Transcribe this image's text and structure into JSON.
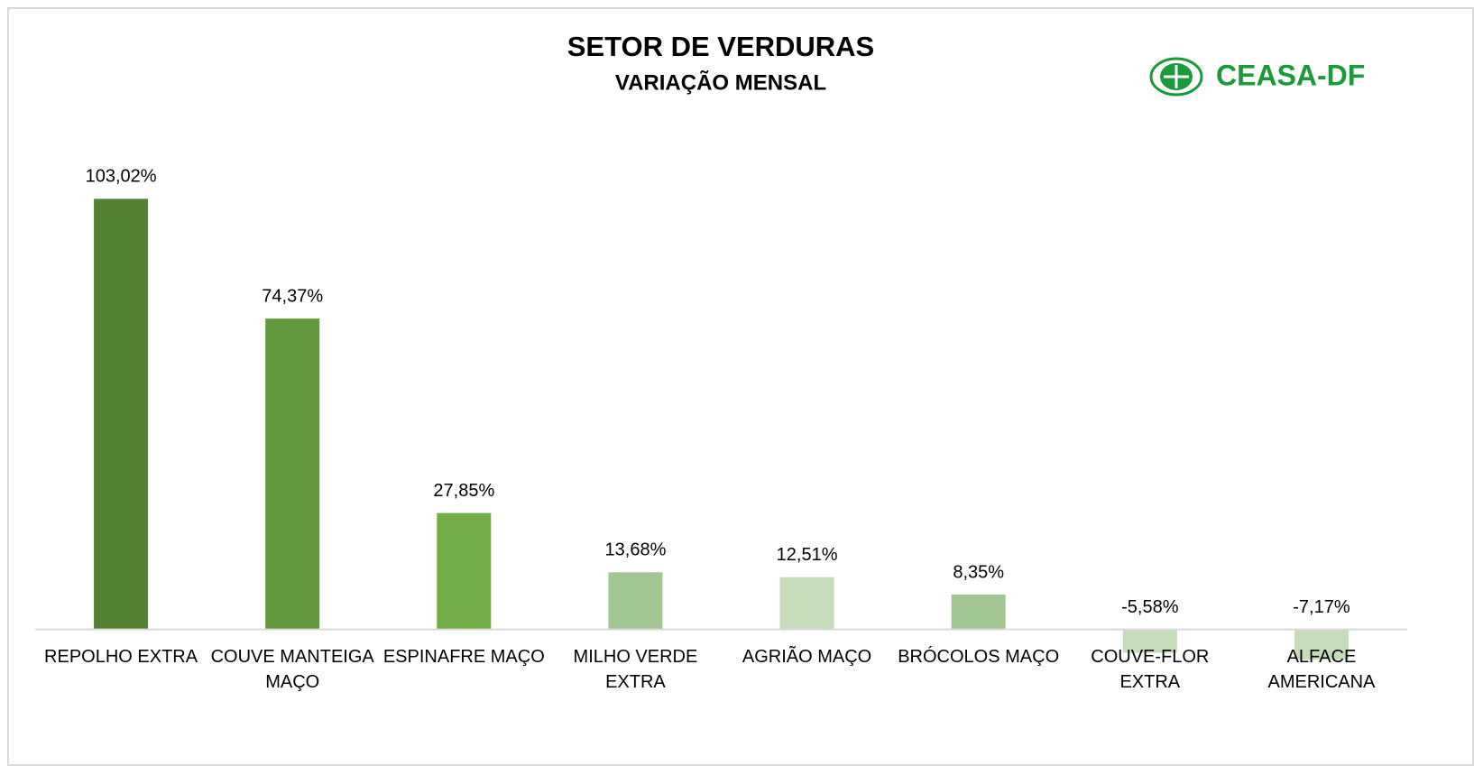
{
  "chart_data": {
    "type": "bar",
    "title": "SETOR DE VERDURAS",
    "subtitle": "VARIAÇÃO MENSAL",
    "logo_text": "CEASA-DF",
    "categories": [
      "REPOLHO EXTRA",
      "COUVE MANTEIGA MAÇO",
      "ESPINAFRE MAÇO",
      "MILHO VERDE EXTRA",
      "AGRIÃO MAÇO",
      "BRÓCOLOS MAÇO",
      "COUVE-FLOR EXTRA",
      "ALFACE AMERICANA"
    ],
    "values": [
      103.02,
      74.37,
      27.85,
      13.68,
      12.51,
      8.35,
      -5.58,
      -7.17
    ],
    "value_labels": [
      "103,02%",
      "74,37%",
      "27,85%",
      "13,68%",
      "12,51%",
      "8,35%",
      "-5,58%",
      "-7,17%"
    ],
    "colors": [
      "#548235",
      "#62993e",
      "#70ad47",
      "#a3c793",
      "#c5dbb9",
      "#a3c793",
      "#c5dbb9",
      "#c5dbb9"
    ],
    "ylim": [
      -10,
      110
    ]
  }
}
